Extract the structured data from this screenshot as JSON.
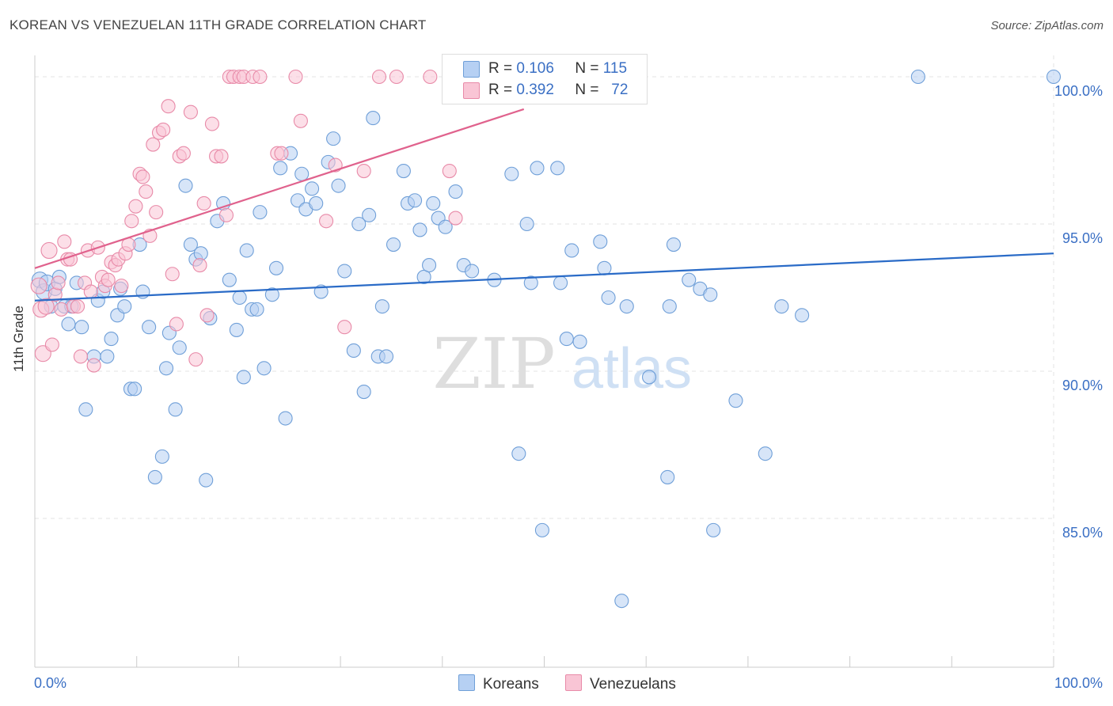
{
  "title": "KOREAN VS VENEZUELAN 11TH GRADE CORRELATION CHART",
  "source": "Source: ZipAtlas.com",
  "watermark": {
    "zip": "ZIP",
    "atlas": "atlas"
  },
  "legend": {
    "korean": {
      "r_label": "R =",
      "r_value": "0.106",
      "n_label": "N =",
      "n_value": "115"
    },
    "venezuelan": {
      "r_label": "R =",
      "r_value": "0.392",
      "n_label": "N =",
      "n_value": "72"
    }
  },
  "colors": {
    "korean_fill": "#b6d0f3",
    "korean_stroke": "#6f9fd8",
    "korean_line": "#2a6bc7",
    "venezuelan_fill": "#f9c5d5",
    "venezuelan_stroke": "#e88aa8",
    "venezuelan_line": "#e0628d",
    "tick_text": "#3a6fc4",
    "grid": "#e3e3e3"
  },
  "chart_data": {
    "type": "scatter",
    "title": "KOREAN VS VENEZUELAN 11TH GRADE CORRELATION CHART",
    "xlabel": "",
    "ylabel": "11th Grade",
    "xlim": [
      0,
      100
    ],
    "ylim": [
      80.5,
      100.8
    ],
    "x_tick_labels": [
      "0.0%",
      "100.0%"
    ],
    "y_ticks": [
      85,
      90,
      95,
      100
    ],
    "y_tick_labels": [
      "85.0%",
      "90.0%",
      "95.0%",
      "100.0%"
    ],
    "legend_position": "bottom-center",
    "series": [
      {
        "name": "Koreans",
        "r": 0.106,
        "n": 115,
        "trend": {
          "x": [
            0,
            100
          ],
          "y": [
            92.4,
            94.0
          ]
        },
        "points": [
          [
            0.5,
            93.1
          ],
          [
            0.9,
            92.7
          ],
          [
            1.2,
            93.0
          ],
          [
            1.6,
            92.2
          ],
          [
            2.0,
            92.8
          ],
          [
            2.4,
            93.2
          ],
          [
            2.9,
            92.2
          ],
          [
            3.3,
            91.6
          ],
          [
            3.6,
            92.2
          ],
          [
            4.1,
            93.0
          ],
          [
            4.6,
            91.5
          ],
          [
            5.0,
            88.7
          ],
          [
            5.8,
            90.5
          ],
          [
            6.2,
            92.4
          ],
          [
            6.7,
            92.7
          ],
          [
            7.1,
            90.5
          ],
          [
            7.5,
            91.1
          ],
          [
            8.1,
            91.9
          ],
          [
            8.4,
            92.8
          ],
          [
            8.8,
            92.2
          ],
          [
            9.4,
            89.4
          ],
          [
            9.8,
            89.4
          ],
          [
            10.3,
            94.3
          ],
          [
            10.6,
            92.7
          ],
          [
            11.2,
            91.5
          ],
          [
            11.8,
            86.4
          ],
          [
            12.5,
            87.1
          ],
          [
            12.9,
            90.1
          ],
          [
            13.2,
            91.3
          ],
          [
            13.8,
            88.7
          ],
          [
            14.2,
            90.8
          ],
          [
            14.8,
            96.3
          ],
          [
            15.3,
            94.3
          ],
          [
            15.8,
            93.8
          ],
          [
            16.3,
            94.0
          ],
          [
            16.8,
            86.3
          ],
          [
            17.2,
            91.8
          ],
          [
            17.9,
            95.1
          ],
          [
            18.5,
            95.7
          ],
          [
            19.1,
            93.1
          ],
          [
            19.8,
            91.4
          ],
          [
            20.1,
            92.5
          ],
          [
            20.5,
            89.8
          ],
          [
            20.8,
            94.1
          ],
          [
            21.3,
            92.1
          ],
          [
            21.8,
            92.1
          ],
          [
            22.1,
            95.4
          ],
          [
            22.5,
            90.1
          ],
          [
            23.3,
            92.6
          ],
          [
            23.7,
            93.5
          ],
          [
            24.1,
            96.9
          ],
          [
            24.6,
            88.4
          ],
          [
            25.1,
            97.4
          ],
          [
            25.8,
            95.8
          ],
          [
            26.2,
            96.7
          ],
          [
            26.6,
            95.5
          ],
          [
            27.2,
            96.2
          ],
          [
            27.6,
            95.7
          ],
          [
            28.1,
            92.7
          ],
          [
            28.8,
            97.1
          ],
          [
            29.3,
            97.9
          ],
          [
            29.8,
            96.3
          ],
          [
            30.4,
            93.4
          ],
          [
            31.3,
            90.7
          ],
          [
            31.8,
            95.0
          ],
          [
            32.3,
            89.3
          ],
          [
            32.8,
            95.3
          ],
          [
            33.2,
            98.6
          ],
          [
            33.7,
            90.5
          ],
          [
            34.1,
            92.2
          ],
          [
            34.5,
            90.5
          ],
          [
            35.2,
            94.3
          ],
          [
            36.2,
            96.8
          ],
          [
            36.6,
            95.7
          ],
          [
            37.3,
            95.8
          ],
          [
            37.8,
            94.8
          ],
          [
            38.2,
            93.2
          ],
          [
            38.7,
            93.6
          ],
          [
            39.1,
            95.7
          ],
          [
            39.6,
            95.2
          ],
          [
            40.3,
            94.9
          ],
          [
            41.3,
            96.1
          ],
          [
            42.1,
            93.6
          ],
          [
            42.9,
            93.4
          ],
          [
            45.1,
            93.1
          ],
          [
            46.8,
            96.7
          ],
          [
            47.5,
            87.2
          ],
          [
            48.3,
            95.0
          ],
          [
            48.7,
            93.0
          ],
          [
            49.3,
            96.9
          ],
          [
            49.8,
            84.6
          ],
          [
            51.3,
            96.9
          ],
          [
            51.6,
            93.0
          ],
          [
            52.2,
            91.1
          ],
          [
            52.7,
            94.1
          ],
          [
            53.5,
            91.0
          ],
          [
            55.5,
            94.4
          ],
          [
            55.9,
            93.5
          ],
          [
            56.3,
            92.5
          ],
          [
            57.6,
            82.2
          ],
          [
            58.1,
            92.2
          ],
          [
            60.3,
            89.8
          ],
          [
            62.1,
            86.4
          ],
          [
            62.3,
            92.2
          ],
          [
            62.7,
            94.3
          ],
          [
            64.2,
            93.1
          ],
          [
            65.3,
            92.8
          ],
          [
            66.3,
            92.6
          ],
          [
            66.6,
            84.6
          ],
          [
            68.8,
            89.0
          ],
          [
            71.7,
            87.2
          ],
          [
            73.3,
            92.2
          ],
          [
            75.3,
            91.9
          ],
          [
            86.7,
            100.0
          ],
          [
            100.0,
            100.0
          ]
        ]
      },
      {
        "name": "Venezuelans",
        "r": 0.392,
        "n": 72,
        "trend": {
          "x": [
            0,
            48
          ],
          "y": [
            93.5,
            98.9
          ]
        },
        "points": [
          [
            0.4,
            92.9
          ],
          [
            0.6,
            92.1
          ],
          [
            0.8,
            90.6
          ],
          [
            1.1,
            92.2
          ],
          [
            1.4,
            94.1
          ],
          [
            1.7,
            90.9
          ],
          [
            2.0,
            92.6
          ],
          [
            2.3,
            93.0
          ],
          [
            2.6,
            92.1
          ],
          [
            2.9,
            94.4
          ],
          [
            3.2,
            93.8
          ],
          [
            3.5,
            93.8
          ],
          [
            3.8,
            92.2
          ],
          [
            4.2,
            92.2
          ],
          [
            4.5,
            90.5
          ],
          [
            4.9,
            93.0
          ],
          [
            5.2,
            94.1
          ],
          [
            5.5,
            92.7
          ],
          [
            5.8,
            90.2
          ],
          [
            6.2,
            94.2
          ],
          [
            6.6,
            93.2
          ],
          [
            6.9,
            92.9
          ],
          [
            7.2,
            93.1
          ],
          [
            7.5,
            93.7
          ],
          [
            7.9,
            93.6
          ],
          [
            8.2,
            93.8
          ],
          [
            8.5,
            92.9
          ],
          [
            8.9,
            94.0
          ],
          [
            9.2,
            94.3
          ],
          [
            9.5,
            95.1
          ],
          [
            9.9,
            95.6
          ],
          [
            10.3,
            96.7
          ],
          [
            10.6,
            96.6
          ],
          [
            10.9,
            96.1
          ],
          [
            11.3,
            94.6
          ],
          [
            11.6,
            97.7
          ],
          [
            11.9,
            95.4
          ],
          [
            12.2,
            98.1
          ],
          [
            12.6,
            98.2
          ],
          [
            13.1,
            99.0
          ],
          [
            13.5,
            93.3
          ],
          [
            13.9,
            91.6
          ],
          [
            14.2,
            97.3
          ],
          [
            14.6,
            97.4
          ],
          [
            15.3,
            98.8
          ],
          [
            15.8,
            90.4
          ],
          [
            16.2,
            93.6
          ],
          [
            16.6,
            95.7
          ],
          [
            16.9,
            91.9
          ],
          [
            17.4,
            98.4
          ],
          [
            17.8,
            97.3
          ],
          [
            18.3,
            97.3
          ],
          [
            18.8,
            95.3
          ],
          [
            19.1,
            100.0
          ],
          [
            19.5,
            100.0
          ],
          [
            20.1,
            100.0
          ],
          [
            20.5,
            100.0
          ],
          [
            21.4,
            100.0
          ],
          [
            22.1,
            100.0
          ],
          [
            23.8,
            97.4
          ],
          [
            24.2,
            97.4
          ],
          [
            25.6,
            100.0
          ],
          [
            26.1,
            98.5
          ],
          [
            28.6,
            95.1
          ],
          [
            29.5,
            97.0
          ],
          [
            30.4,
            91.5
          ],
          [
            32.3,
            96.8
          ],
          [
            33.8,
            100.0
          ],
          [
            35.5,
            100.0
          ],
          [
            38.8,
            100.0
          ],
          [
            40.7,
            96.8
          ],
          [
            41.3,
            95.2
          ]
        ]
      }
    ]
  }
}
